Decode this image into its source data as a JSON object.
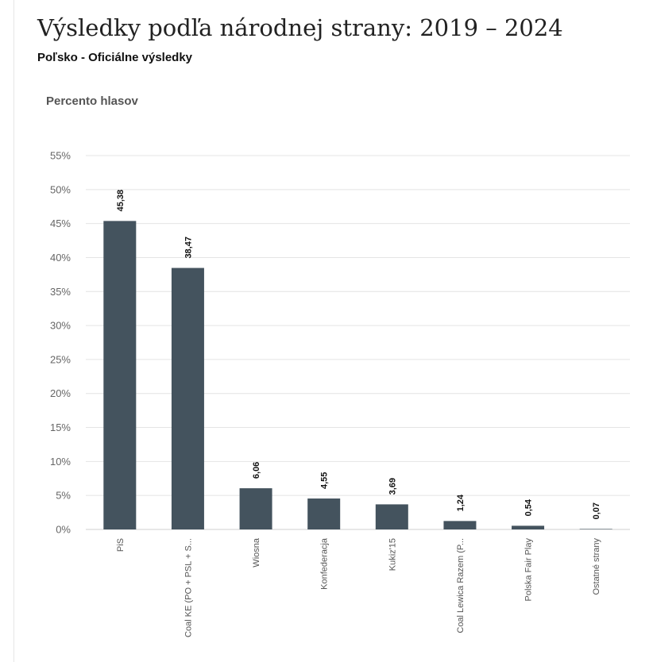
{
  "header": {
    "title": "Výsledky podľa národnej strany: 2019 – 2024",
    "subtitle": "Poľsko - Oficiálne výsledky"
  },
  "chart_data": {
    "type": "bar",
    "ylabel": "Percento hlasov",
    "ylim": [
      0,
      55
    ],
    "yticks": [
      "0%",
      "5%",
      "10%",
      "15%",
      "20%",
      "25%",
      "30%",
      "35%",
      "40%",
      "45%",
      "50%",
      "55%"
    ],
    "grid": true,
    "bar_color": "#44535e",
    "categories": [
      "PiS",
      "Coal KE (PO + PSL + S...",
      "Wiosna",
      "Konfederacja",
      "Kukiz'15",
      "Coal Lewica Razem (P...",
      "Polska Fair Play",
      "Ostatné strany"
    ],
    "values": [
      45.38,
      38.47,
      6.06,
      4.55,
      3.69,
      1.24,
      0.54,
      0.07
    ],
    "value_labels": [
      "45,38",
      "38,47",
      "6,06",
      "4,55",
      "3,69",
      "1,24",
      "0,54",
      "0,07"
    ]
  }
}
